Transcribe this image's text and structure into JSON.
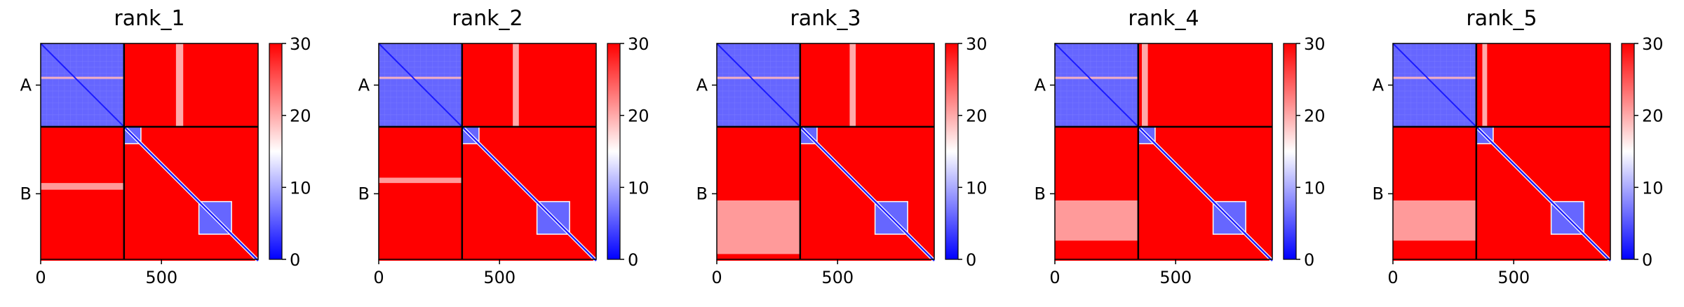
{
  "chart_data": [
    {
      "type": "heatmap",
      "title": "rank_1",
      "xlabel": "",
      "ylabel": "",
      "x_ticks": [
        "0",
        "500"
      ],
      "y_ticks": [
        "A",
        "B"
      ],
      "xlim": [
        0,
        900
      ],
      "chain_boundary": 345,
      "n_residues": 900,
      "colorbar": {
        "min": 0,
        "max": 30,
        "ticks": [
          "0",
          "10",
          "20",
          "30"
        ],
        "colormap": "bwr"
      },
      "blocks": {
        "AA": 6,
        "AB": 30,
        "BA": 30,
        "BB_offdiag": 30,
        "BB_diag": 2
      },
      "domains_B": [
        [
          345,
          415
        ],
        [
          655,
          790
        ]
      ],
      "light_stripes_AB": [
        [
          560,
          590
        ]
      ],
      "light_stripes_BA": [
        [
          0.42,
          0.47
        ]
      ]
    },
    {
      "type": "heatmap",
      "title": "rank_2",
      "xlabel": "",
      "ylabel": "",
      "x_ticks": [
        "0",
        "500"
      ],
      "y_ticks": [
        "A",
        "B"
      ],
      "xlim": [
        0,
        900
      ],
      "chain_boundary": 345,
      "n_residues": 900,
      "colorbar": {
        "min": 0,
        "max": 30,
        "ticks": [
          "0",
          "10",
          "20",
          "30"
        ],
        "colormap": "bwr"
      },
      "blocks": {
        "AA": 6,
        "AB": 30,
        "BA": 30,
        "BB_offdiag": 30,
        "BB_diag": 2
      },
      "domains_B": [
        [
          345,
          415
        ],
        [
          655,
          790
        ]
      ],
      "light_stripes_AB": [
        [
          555,
          580
        ]
      ],
      "light_stripes_BA": [
        [
          0.38,
          0.42
        ]
      ]
    },
    {
      "type": "heatmap",
      "title": "rank_3",
      "xlabel": "",
      "ylabel": "",
      "x_ticks": [
        "0",
        "500"
      ],
      "y_ticks": [
        "A",
        "B"
      ],
      "xlim": [
        0,
        900
      ],
      "chain_boundary": 345,
      "n_residues": 900,
      "colorbar": {
        "min": 0,
        "max": 30,
        "ticks": [
          "0",
          "10",
          "20",
          "30"
        ],
        "colormap": "bwr"
      },
      "blocks": {
        "AA": 6,
        "AB": 30,
        "BA": 30,
        "BB_offdiag": 30,
        "BB_diag": 2
      },
      "domains_B": [
        [
          345,
          415
        ],
        [
          655,
          790
        ]
      ],
      "light_stripes_AB": [
        [
          550,
          575
        ]
      ],
      "light_stripes_BA": [
        [
          0.55,
          0.95
        ]
      ]
    },
    {
      "type": "heatmap",
      "title": "rank_4",
      "xlabel": "",
      "ylabel": "",
      "x_ticks": [
        "0",
        "500"
      ],
      "y_ticks": [
        "A",
        "B"
      ],
      "xlim": [
        0,
        900
      ],
      "chain_boundary": 345,
      "n_residues": 900,
      "colorbar": {
        "min": 0,
        "max": 30,
        "ticks": [
          "0",
          "10",
          "20",
          "30"
        ],
        "colormap": "bwr"
      },
      "blocks": {
        "AA": 6,
        "AB": 30,
        "BA": 30,
        "BB_offdiag": 30,
        "BB_diag": 2
      },
      "domains_B": [
        [
          345,
          415
        ],
        [
          655,
          790
        ]
      ],
      "light_stripes_AB": [
        [
          360,
          385
        ]
      ],
      "light_stripes_BA": [
        [
          0.55,
          0.85
        ]
      ]
    },
    {
      "type": "heatmap",
      "title": "rank_5",
      "xlabel": "",
      "ylabel": "",
      "x_ticks": [
        "0",
        "500"
      ],
      "y_ticks": [
        "A",
        "B"
      ],
      "xlim": [
        0,
        900
      ],
      "chain_boundary": 345,
      "n_residues": 900,
      "colorbar": {
        "min": 0,
        "max": 30,
        "ticks": [
          "0",
          "10",
          "20",
          "30"
        ],
        "colormap": "bwr"
      },
      "blocks": {
        "AA": 6,
        "AB": 30,
        "BA": 30,
        "BB_offdiag": 30,
        "BB_diag": 2
      },
      "domains_B": [
        [
          345,
          415
        ],
        [
          655,
          790
        ]
      ],
      "light_stripes_AB": [
        [
          370,
          390
        ]
      ],
      "light_stripes_BA": [
        [
          0.55,
          0.85
        ]
      ]
    }
  ]
}
